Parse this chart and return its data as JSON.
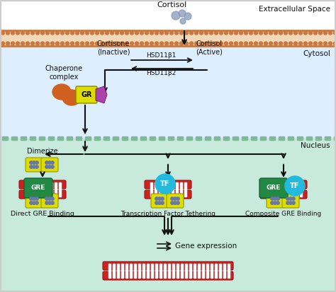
{
  "fig_width": 4.74,
  "fig_height": 4.13,
  "dpi": 100,
  "bg_outer": "#ffffff",
  "extracellular_bg": "#ffffff",
  "cytosol_bg": "#ddeeff",
  "nucleus_bg": "#c8eadc",
  "membrane_color": "#c87840",
  "membrane_fill": "#f0d8b8",
  "nucleus_border_color": "#80b898",
  "cortisol_mol_color": "#8899bb",
  "GR_color": "#dddd00",
  "GRE_color": "#228844",
  "TF_color": "#22bbdd",
  "chaperone_orange": "#d06020",
  "chaperone_purple": "#aa44aa",
  "dna_red": "#cc2222",
  "dna_dark": "#991111",
  "gr_dimer_yellow": "#dddd00",
  "gr_dimer_dot": "#6677aa",
  "arrow_color": "#111111",
  "text_color": "#111111",
  "border_color": "#cccccc",
  "labels": {
    "cortisol": "Cortisol",
    "extracellular": "Extracellular Space",
    "cytosol": "Cytosol",
    "nucleus": "Nucleus",
    "cortisone": "Cortisone\n(Inactive)",
    "cortisol_active": "Cortisol\n(Active)",
    "hsd11b1": "HSD11β1",
    "hsd11b2": "HSD11β2",
    "chaperone": "Chaperone\ncomplex",
    "gr": "GR",
    "gre": "GRE",
    "tf": "TF",
    "dimerize": "Dimerize",
    "direct_gre": "Direct GRE Binding",
    "tethering": "Transcription Factor Tethering",
    "composite": "Composite GRE Binding",
    "gene_expr": "Gene expression"
  }
}
